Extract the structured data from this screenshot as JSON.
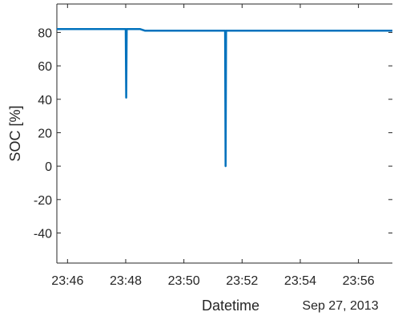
{
  "chart_data": {
    "type": "line",
    "title": "",
    "xlabel": "Datetime",
    "ylabel": "SOC [%]",
    "x_secondary_label": "Sep 27, 2013",
    "x_range": [
      "23:45:38",
      "23:57:10"
    ],
    "x_ticks": [
      "23:46",
      "23:48",
      "23:50",
      "23:52",
      "23:54",
      "23:56"
    ],
    "ylim": [
      -58,
      97
    ],
    "y_ticks": [
      80,
      60,
      40,
      20,
      0,
      -20,
      -40
    ],
    "grid": false,
    "line_color": "#0072BD",
    "series": [
      {
        "x": [
          "23:45:38",
          "23:48:00",
          "23:48:01",
          "23:48:02",
          "23:48:03",
          "23:48:30",
          "23:48:40",
          "23:51:25",
          "23:51:26",
          "23:51:27",
          "23:51:28",
          "23:57:10"
        ],
        "y": [
          82,
          82,
          41,
          82,
          82,
          82,
          81,
          81,
          0,
          81,
          81,
          81
        ]
      }
    ]
  }
}
